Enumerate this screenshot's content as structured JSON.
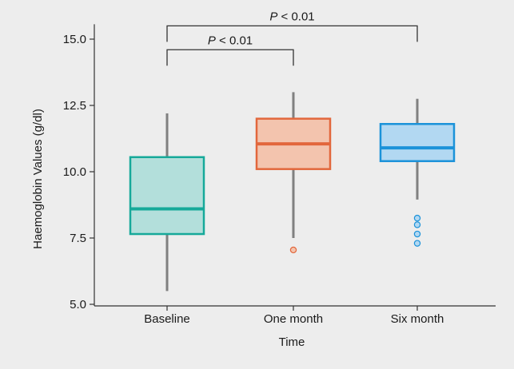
{
  "chart_data": {
    "type": "box",
    "title": "",
    "xlabel": "Time",
    "ylabel": "Haemoglobin Values (g/dl)",
    "ylim": [
      5.0,
      15.5
    ],
    "yticks": [
      5.0,
      7.5,
      10.0,
      12.5,
      15.0
    ],
    "ytick_labels": [
      "5.0",
      "7.5",
      "10.0",
      "12.5",
      "15.0"
    ],
    "categories": [
      "Baseline",
      "One month",
      "Six month"
    ],
    "series": [
      {
        "category": "Baseline",
        "whisker_low": 5.5,
        "q1": 7.65,
        "median": 8.6,
        "q3": 10.55,
        "whisker_high": 12.2,
        "outliers": [],
        "stroke": "#16a99a",
        "fill": "#b3dfdb"
      },
      {
        "category": "One month",
        "whisker_low": 7.5,
        "q1": 10.1,
        "median": 11.05,
        "q3": 12.0,
        "whisker_high": 13.0,
        "outliers": [
          7.05
        ],
        "stroke": "#e2673c",
        "fill": "#f3c4ae"
      },
      {
        "category": "Six month",
        "whisker_low": 8.95,
        "q1": 10.4,
        "median": 10.9,
        "q3": 11.8,
        "whisker_high": 12.75,
        "outliers": [
          8.25,
          8.0,
          7.65,
          7.3
        ],
        "stroke": "#1b92d9",
        "fill": "#b2d8f2"
      }
    ],
    "significance": [
      {
        "from": "Baseline",
        "to": "One month",
        "level": 14.6,
        "label_p": "P",
        "label_rest": " < 0.01"
      },
      {
        "from": "Baseline",
        "to": "Six month",
        "level": 15.5,
        "label_p": "P",
        "label_rest": " < 0.01"
      }
    ],
    "whisker_color": "#808080",
    "grid": false,
    "legend": "none"
  }
}
